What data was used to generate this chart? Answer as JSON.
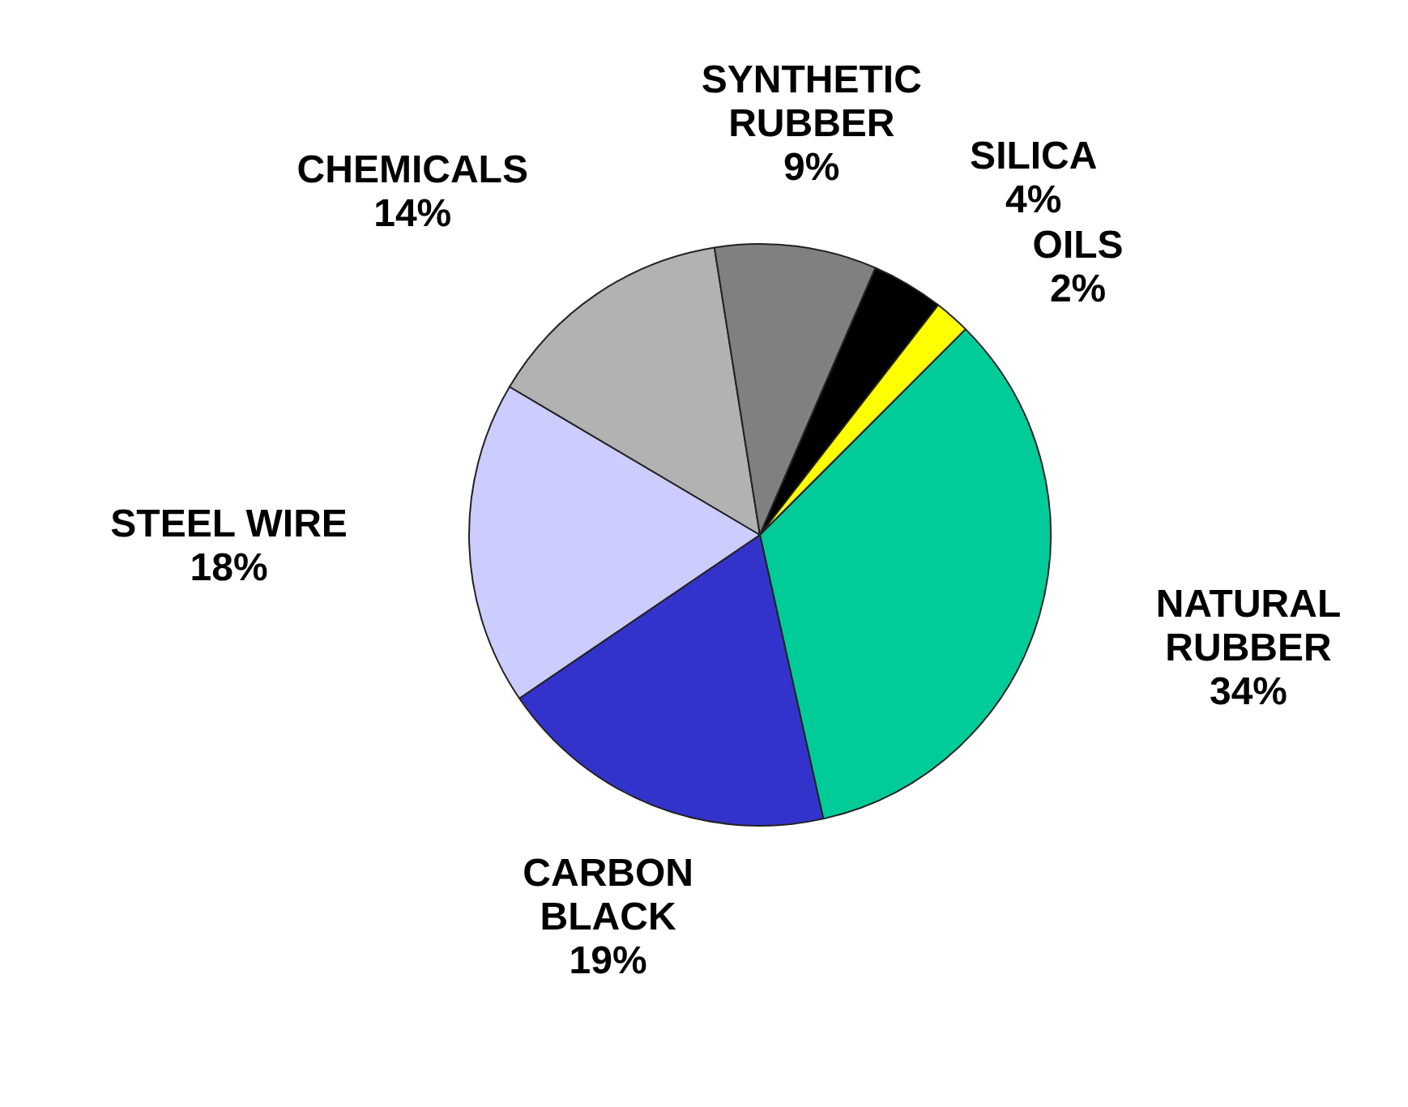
{
  "chart_data": {
    "type": "pie",
    "categories": [
      "NATURAL RUBBER",
      "CARBON BLACK",
      "STEEL WIRE",
      "CHEMICALS",
      "SYNTHETIC RUBBER",
      "SILICA",
      "OILS"
    ],
    "values": [
      34,
      19,
      18,
      14,
      9,
      4,
      2
    ],
    "value_labels": [
      "34%",
      "19%",
      "18%",
      "14%",
      "9%",
      "4%",
      "2%"
    ],
    "colors": [
      "#00cc99",
      "#3333cc",
      "#ccccff",
      "#b2b2b2",
      "#808080",
      "#000000",
      "#ffff00"
    ],
    "legend": false
  }
}
